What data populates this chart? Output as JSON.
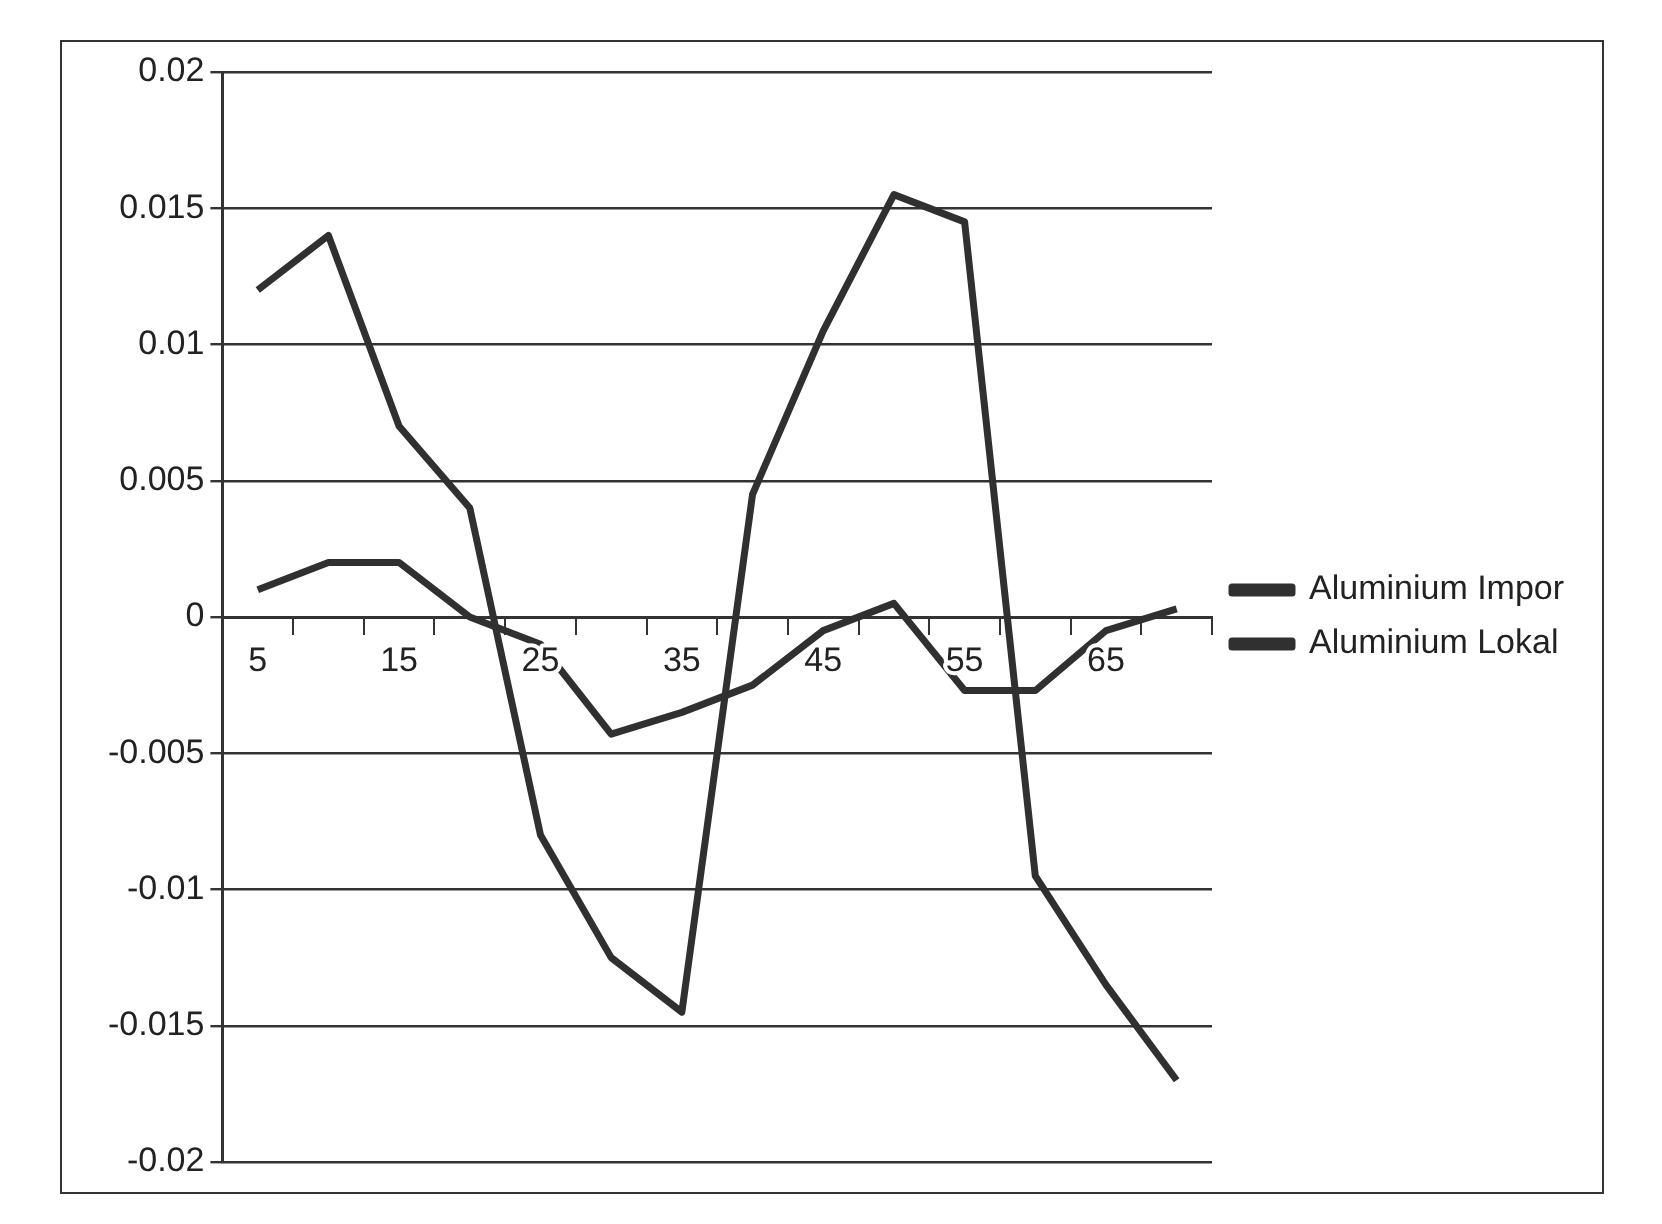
{
  "chart_data": {
    "type": "line",
    "categories": [
      "5",
      null,
      "15",
      null,
      "25",
      null,
      "35",
      null,
      "45",
      null,
      "55",
      null,
      "65",
      null
    ],
    "series": [
      {
        "name": "Aluminium Impor",
        "color": "#303030",
        "values": [
          0.012,
          0.014,
          0.007,
          0.004,
          -0.008,
          -0.0125,
          -0.0145,
          0.0045,
          0.0105,
          0.0155,
          0.0145,
          -0.0095,
          -0.0135,
          -0.017
        ]
      },
      {
        "name": "Aluminium Lokal",
        "color": "#303030",
        "values": [
          0.001,
          0.002,
          0.002,
          0,
          -0.001,
          -0.0043,
          -0.0035,
          -0.0025,
          -0.0005,
          0.0005,
          -0.0027,
          -0.0027,
          -0.0005,
          0.0003
        ]
      }
    ],
    "ylim": [
      -0.02,
      0.02
    ],
    "yticks": [
      -0.02,
      -0.015,
      -0.01,
      -0.005,
      0,
      0.005,
      0.01,
      0.015,
      0.02
    ],
    "grid": "y",
    "legend": "right",
    "marker": "none",
    "line_style": "solid"
  }
}
